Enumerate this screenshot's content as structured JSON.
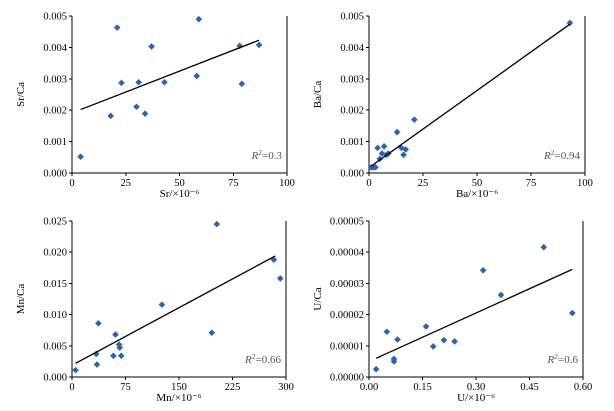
{
  "chart_data": [
    {
      "id": "sr",
      "type": "scatter",
      "xlabel": "Sr/×10⁻⁶",
      "ylabel": "Sr/Ca",
      "r2_prefix": "R",
      "r2_sup": "2",
      "r2_value": "=0.3",
      "xlim": [
        0,
        100
      ],
      "ylim": [
        0,
        0.005
      ],
      "xticks": [
        0,
        25,
        50,
        75,
        100
      ],
      "yticks": [
        0.0,
        0.001,
        0.002,
        0.003,
        0.004,
        0.005
      ],
      "xtick_labels": [
        "0",
        "25",
        "50",
        "75",
        "100"
      ],
      "ytick_labels": [
        "0.000",
        "0.001",
        "0.002",
        "0.003",
        "0.004",
        "0.005"
      ],
      "points": [
        [
          4,
          0.00052
        ],
        [
          18,
          0.00182
        ],
        [
          21,
          0.00463
        ],
        [
          23,
          0.00287
        ],
        [
          30,
          0.00211
        ],
        [
          31,
          0.00289
        ],
        [
          34,
          0.00189
        ],
        [
          37,
          0.00403
        ],
        [
          43,
          0.00289
        ],
        [
          58,
          0.00309
        ],
        [
          59,
          0.0049
        ],
        [
          78,
          0.00405
        ],
        [
          79,
          0.00284
        ],
        [
          87,
          0.00408
        ]
      ],
      "trendline": [
        [
          4,
          0.00202
        ],
        [
          87,
          0.00423
        ]
      ]
    },
    {
      "id": "ba",
      "type": "scatter",
      "xlabel": "Ba/×10⁻⁶",
      "ylabel": "Ba/Ca",
      "r2_prefix": "R",
      "r2_sup": "2",
      "r2_value": "=0.94",
      "xlim": [
        0,
        100
      ],
      "ylim": [
        0,
        0.005
      ],
      "xticks": [
        0,
        25,
        50,
        75,
        100
      ],
      "yticks": [
        0.0,
        0.001,
        0.002,
        0.003,
        0.004,
        0.005
      ],
      "xtick_labels": [
        "0",
        "25",
        "50",
        "75",
        "100"
      ],
      "ytick_labels": [
        "0.000",
        "0.001",
        "0.002",
        "0.003",
        "0.004",
        "0.005"
      ],
      "points": [
        [
          1,
          0.00018
        ],
        [
          2,
          0.00018
        ],
        [
          3,
          0.00018
        ],
        [
          4,
          0.0008
        ],
        [
          5,
          0.00045
        ],
        [
          6,
          0.00062
        ],
        [
          7,
          0.00085
        ],
        [
          8,
          0.00058
        ],
        [
          9,
          0.00062
        ],
        [
          13,
          0.0013
        ],
        [
          15,
          0.0008
        ],
        [
          16,
          0.00058
        ],
        [
          17,
          0.00075
        ],
        [
          21,
          0.0017
        ],
        [
          93,
          0.00478
        ]
      ],
      "trendline": [
        [
          1,
          0.00022
        ],
        [
          93,
          0.00474
        ]
      ]
    },
    {
      "id": "mn",
      "type": "scatter",
      "xlabel": "Mn/×10⁻⁶",
      "ylabel": "Mn/Ca",
      "r2_prefix": "R",
      "r2_sup": "2",
      "r2_value": "=0.66",
      "xlim": [
        0,
        300
      ],
      "ylim": [
        0,
        0.025
      ],
      "xticks": [
        0,
        75,
        150,
        225,
        300
      ],
      "yticks": [
        0.0,
        0.005,
        0.01,
        0.015,
        0.02,
        0.025
      ],
      "xtick_labels": [
        "0",
        "75",
        "150",
        "225",
        "300"
      ],
      "ytick_labels": [
        "0.000",
        "0.005",
        "0.010",
        "0.015",
        "0.020",
        "0.025"
      ],
      "points": [
        [
          5,
          0.0011
        ],
        [
          34,
          0.0037
        ],
        [
          35,
          0.002
        ],
        [
          37,
          0.0086
        ],
        [
          58,
          0.0034
        ],
        [
          61,
          0.0068
        ],
        [
          66,
          0.0052
        ],
        [
          67,
          0.0047
        ],
        [
          69,
          0.0034
        ],
        [
          126,
          0.0116
        ],
        [
          196,
          0.0071
        ],
        [
          203,
          0.0245
        ],
        [
          283,
          0.0188
        ],
        [
          292,
          0.0158
        ]
      ],
      "trendline": [
        [
          5,
          0.0022
        ],
        [
          285,
          0.0194
        ]
      ]
    },
    {
      "id": "u",
      "type": "scatter",
      "xlabel": "U/×10⁻⁶",
      "ylabel": "U/Ca",
      "r2_prefix": "R",
      "r2_sup": "2",
      "r2_value": "=0.6",
      "xlim": [
        0,
        0.6
      ],
      "ylim": [
        0,
        5e-05
      ],
      "xticks": [
        0,
        0.15,
        0.3,
        0.45,
        0.6
      ],
      "yticks": [
        0,
        1e-05,
        2e-05,
        3e-05,
        4e-05,
        5e-05
      ],
      "xtick_labels": [
        "0.00",
        "0.15",
        "0.30",
        "0.45",
        "0.60"
      ],
      "ytick_labels": [
        "0.00000",
        "0.00001",
        "0.00002",
        "0.00003",
        "0.00004",
        "0.00005"
      ],
      "points": [
        [
          0.02,
          2.5e-06
        ],
        [
          0.05,
          1.45e-05
        ],
        [
          0.07,
          5e-06
        ],
        [
          0.07,
          5.8e-06
        ],
        [
          0.08,
          1.2e-05
        ],
        [
          0.16,
          1.62e-05
        ],
        [
          0.18,
          9.8e-06
        ],
        [
          0.21,
          1.18e-05
        ],
        [
          0.24,
          1.14e-05
        ],
        [
          0.32,
          3.42e-05
        ],
        [
          0.37,
          2.63e-05
        ],
        [
          0.49,
          4.16e-05
        ],
        [
          0.57,
          2.05e-05
        ]
      ],
      "trendline": [
        [
          0.02,
          6e-06
        ],
        [
          0.57,
          3.45e-05
        ]
      ]
    }
  ]
}
